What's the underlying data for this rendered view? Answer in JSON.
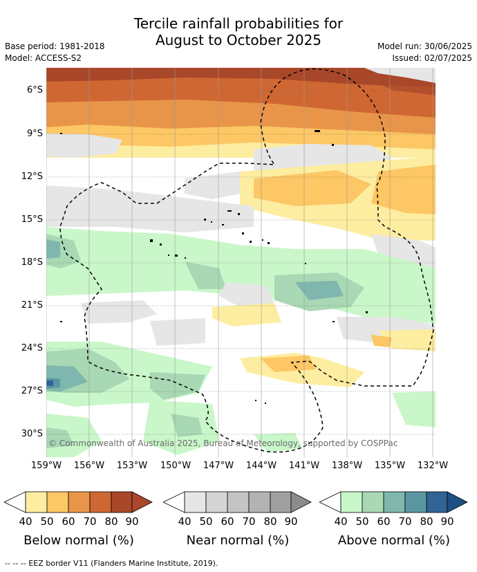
{
  "title_line1": "Tercile rainfall probabilities for",
  "title_line2": "August to October 2025",
  "base_period": "Base period: 1981-2018",
  "model": "Model: ACCESS-S2",
  "model_run": "Model run: 30/06/2025",
  "issued": "Issued: 02/07/2025",
  "lat_labels": [
    "6°S",
    "9°S",
    "12°S",
    "15°S",
    "18°S",
    "21°S",
    "24°S",
    "27°S",
    "30°S"
  ],
  "lon_labels": [
    "159°W",
    "156°W",
    "153°W",
    "150°W",
    "147°W",
    "144°W",
    "141°W",
    "138°W",
    "135°W",
    "132°W"
  ],
  "copyright": "© Commonwealth of Australia 2025, Bureau of Meteorology, supported by COSPPac",
  "colorbars": [
    {
      "label": "Below normal (%)",
      "ticks": [
        "40",
        "50",
        "60",
        "70",
        "80",
        "90"
      ],
      "colors": [
        "#fdeda1",
        "#fcc764",
        "#e8954a",
        "#cf6733",
        "#a9472a",
        "#a9472a"
      ]
    },
    {
      "label": "Near normal (%)",
      "ticks": [
        "40",
        "50",
        "60",
        "70",
        "80",
        "90"
      ],
      "colors": [
        "#e6e6e6",
        "#d5d5d5",
        "#c4c4c4",
        "#b3b3b3",
        "#a0a0a0",
        "#8c8c8c"
      ]
    },
    {
      "label": "Above normal (%)",
      "ticks": [
        "40",
        "50",
        "60",
        "70",
        "80",
        "90"
      ],
      "colors": [
        "#c9f7c9",
        "#a8d8b4",
        "#7fb6ad",
        "#5b97a2",
        "#2f6494",
        "#1f4f82"
      ]
    }
  ],
  "footer": "-- -- -- EEZ border V11 (Flanders Marine Institute, 2019)."
}
